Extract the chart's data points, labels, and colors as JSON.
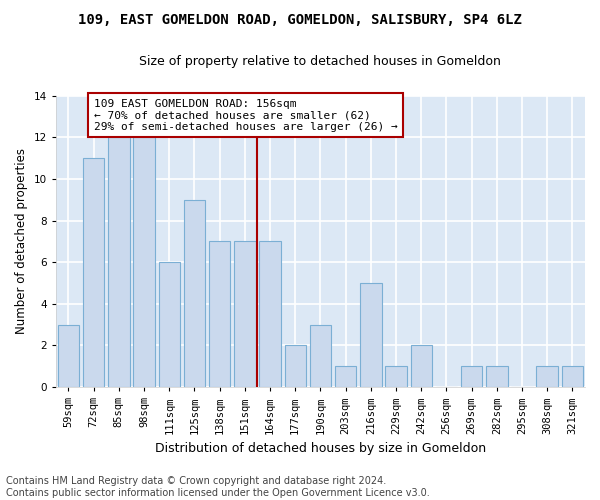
{
  "title": "109, EAST GOMELDON ROAD, GOMELDON, SALISBURY, SP4 6LZ",
  "subtitle": "Size of property relative to detached houses in Gomeldon",
  "xlabel": "Distribution of detached houses by size in Gomeldon",
  "ylabel": "Number of detached properties",
  "categories": [
    "59sqm",
    "72sqm",
    "85sqm",
    "98sqm",
    "111sqm",
    "125sqm",
    "138sqm",
    "151sqm",
    "164sqm",
    "177sqm",
    "190sqm",
    "203sqm",
    "216sqm",
    "229sqm",
    "242sqm",
    "256sqm",
    "269sqm",
    "282sqm",
    "295sqm",
    "308sqm",
    "321sqm"
  ],
  "values": [
    3,
    11,
    12,
    12,
    6,
    9,
    7,
    7,
    7,
    2,
    3,
    1,
    5,
    1,
    2,
    0,
    1,
    1,
    0,
    1,
    1
  ],
  "bar_fill_color": "#cad9ed",
  "bar_edge_color": "#7bafd4",
  "vline_x": 7.5,
  "vline_color": "#aa0000",
  "annotation_text": "109 EAST GOMELDON ROAD: 156sqm\n← 70% of detached houses are smaller (62)\n29% of semi-detached houses are larger (26) →",
  "annotation_box_color": "#ffffff",
  "annotation_border_color": "#aa0000",
  "ylim": [
    0,
    14
  ],
  "yticks": [
    0,
    2,
    4,
    6,
    8,
    10,
    12,
    14
  ],
  "bg_color": "#dce8f5",
  "grid_color": "#ffffff",
  "footer_line1": "Contains HM Land Registry data © Crown copyright and database right 2024.",
  "footer_line2": "Contains public sector information licensed under the Open Government Licence v3.0.",
  "title_fontsize": 10,
  "subtitle_fontsize": 9,
  "xlabel_fontsize": 9,
  "ylabel_fontsize": 8.5,
  "tick_fontsize": 7.5,
  "annotation_fontsize": 8,
  "footer_fontsize": 7
}
